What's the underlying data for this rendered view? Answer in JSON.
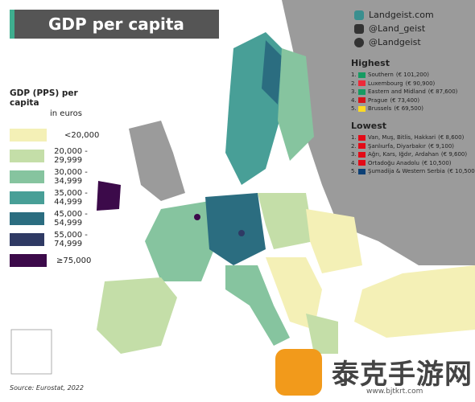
{
  "header": {
    "title": "GDP per capita"
  },
  "social": [
    "Landgeist.com",
    "@Land_geist",
    "@Landgeist"
  ],
  "legend": {
    "title": "GDP (PPS) per capita",
    "subtitle": "in euros",
    "items": [
      {
        "label": "<20,000",
        "color": "#f4f0b6"
      },
      {
        "label": "20,000 - 29,999",
        "color": "#c4dea8"
      },
      {
        "label": "30,000 - 34,999",
        "color": "#86c49f"
      },
      {
        "label": "35,000 - 44,999",
        "color": "#489f97"
      },
      {
        "label": "45,000 - 54,999",
        "color": "#2b6d80"
      },
      {
        "label": "55,000 - 74,999",
        "color": "#2f3a64"
      },
      {
        "label": "≥75,000",
        "color": "#3c0a4a"
      }
    ]
  },
  "highest": {
    "title": "Highest",
    "rows": [
      {
        "rank": "1.",
        "name": "Southern",
        "value": "(€ 101,200)"
      },
      {
        "rank": "2.",
        "name": "Luxembourg",
        "value": "(€ 90,900)"
      },
      {
        "rank": "3.",
        "name": "Eastern and Midland",
        "value": "(€ 87,600)"
      },
      {
        "rank": "4.",
        "name": "Prague",
        "value": "(€ 73,400)"
      },
      {
        "rank": "5.",
        "name": "Brussels",
        "value": "(€ 69,500)"
      }
    ]
  },
  "lowest": {
    "title": "Lowest",
    "rows": [
      {
        "rank": "1.",
        "name": "Van, Muş, Bitlis, Hakkari",
        "value": "(€ 8,600)"
      },
      {
        "rank": "2.",
        "name": "Şanlıurfa, Diyarbakır",
        "value": "(€ 9,100)"
      },
      {
        "rank": "3.",
        "name": "Ağrı, Kars, Iğdır, Ardahan",
        "value": "(€ 9,600)"
      },
      {
        "rank": "4.",
        "name": "Ortadoğu Anadolu",
        "value": "(€ 10,500)"
      },
      {
        "rank": "5.",
        "name": "Şumadija & Western Serbia",
        "value": "(€ 10,500)"
      }
    ]
  },
  "source": "Source: Eurostat, 2022",
  "watermark": {
    "name": "泰克手游网",
    "url": "www.bjtkrt.com"
  }
}
